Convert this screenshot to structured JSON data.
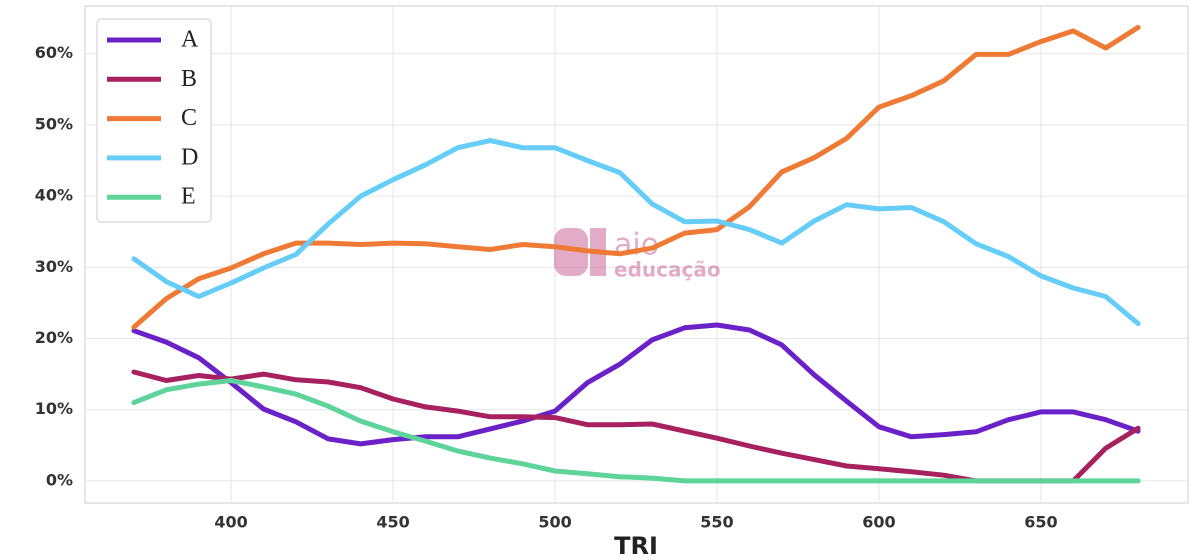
{
  "chart_data": {
    "type": "line",
    "x_label": "TRI",
    "watermark": [
      "aio",
      "educação"
    ],
    "x": [
      370,
      380,
      390,
      400,
      410,
      420,
      430,
      440,
      450,
      460,
      470,
      480,
      490,
      500,
      510,
      520,
      530,
      540,
      550,
      560,
      570,
      580,
      590,
      600,
      610,
      620,
      630,
      640,
      650,
      660,
      670,
      680
    ],
    "series": [
      {
        "name": "A",
        "color": "#6a22c8",
        "values": [
          21.1,
          19.5,
          17.3,
          13.8,
          10.1,
          8.3,
          5.9,
          5.2,
          5.8,
          6.2,
          6.2,
          7.3,
          8.4,
          9.8,
          13.8,
          16.4,
          19.8,
          21.5,
          21.9,
          21.2,
          19.1,
          14.9,
          11.2,
          7.6,
          6.2,
          6.5,
          6.9,
          8.6,
          9.7,
          9.7,
          8.6,
          7.0
        ]
      },
      {
        "name": "B",
        "color": "#a8215f",
        "values": [
          15.3,
          14.1,
          14.8,
          14.3,
          15.0,
          14.2,
          13.9,
          13.1,
          11.5,
          10.4,
          9.8,
          9.0,
          9.0,
          8.9,
          7.9,
          7.9,
          8.0,
          7.0,
          6.0,
          4.9,
          3.9,
          3.0,
          2.1,
          1.7,
          1.3,
          0.8,
          0,
          0,
          0,
          0,
          4.6,
          7.4
        ]
      },
      {
        "name": "C",
        "color": "#ef7a35",
        "values": [
          21.6,
          25.6,
          28.4,
          29.9,
          31.9,
          33.4,
          33.4,
          33.2,
          33.4,
          33.3,
          32.9,
          32.5,
          33.2,
          32.9,
          32.3,
          31.9,
          32.7,
          34.8,
          35.3,
          38.5,
          43.4,
          45.4,
          48.1,
          52.5,
          54.1,
          56.2,
          59.9,
          59.9,
          61.7,
          63.2,
          60.8,
          63.7
        ]
      },
      {
        "name": "D",
        "color": "#66ccf8",
        "values": [
          31.2,
          28.0,
          25.9,
          27.8,
          29.9,
          31.8,
          36.1,
          40.0,
          42.3,
          44.4,
          46.8,
          47.8,
          46.8,
          46.8,
          45.0,
          43.3,
          38.9,
          36.4,
          36.5,
          35.3,
          33.4,
          36.5,
          38.8,
          38.2,
          38.4,
          36.4,
          33.3,
          31.5,
          28.8,
          27.1,
          25.9,
          22.1
        ]
      },
      {
        "name": "E",
        "color": "#5ed39a",
        "values": [
          11.0,
          12.8,
          13.6,
          14.1,
          13.2,
          12.2,
          10.5,
          8.4,
          6.9,
          5.6,
          4.2,
          3.2,
          2.4,
          1.4,
          1.0,
          0.6,
          0.4,
          0,
          0,
          0,
          0,
          0,
          0,
          0,
          0,
          0,
          0,
          0,
          0,
          0,
          0,
          0
        ]
      }
    ],
    "xlim": [
      354.9,
      695.4
    ],
    "xticks": [
      400,
      450,
      500,
      550,
      600,
      650
    ],
    "ylim": [
      -3.1,
      66.7
    ],
    "yticks": [
      {
        "value": 0,
        "label": "0%"
      },
      {
        "value": 10,
        "label": "10%"
      },
      {
        "value": 20,
        "label": "20%"
      },
      {
        "value": 30,
        "label": "30%"
      },
      {
        "value": 40,
        "label": "40%"
      },
      {
        "value": 50,
        "label": "50%"
      },
      {
        "value": 60,
        "label": "60%"
      }
    ],
    "grid": true,
    "legend": "upper left"
  }
}
